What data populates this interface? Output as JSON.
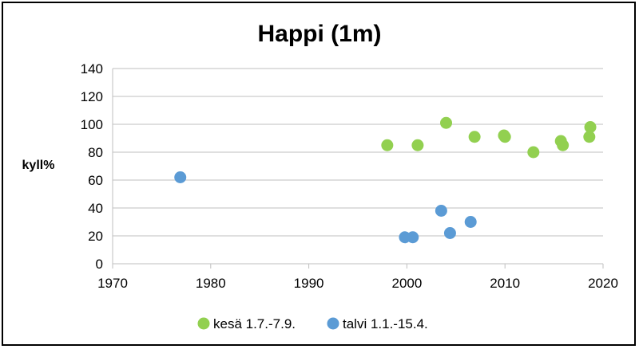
{
  "chart_data": {
    "type": "scatter",
    "title": "Happi (1m)",
    "xlabel": "",
    "ylabel": "kyll%",
    "xlim": [
      1970,
      2020
    ],
    "ylim": [
      0,
      140
    ],
    "x_ticks": [
      1970,
      1980,
      1990,
      2000,
      2010,
      2020
    ],
    "y_ticks": [
      0,
      20,
      40,
      60,
      80,
      100,
      120,
      140
    ],
    "grid": "horizontal",
    "legend_position": "bottom",
    "series": [
      {
        "name": "kesä 1.7.-7.9.",
        "color": "#92d050",
        "points": [
          {
            "x": 1998.0,
            "y": 85
          },
          {
            "x": 2001.1,
            "y": 85
          },
          {
            "x": 2004.0,
            "y": 101
          },
          {
            "x": 2006.9,
            "y": 91
          },
          {
            "x": 2009.9,
            "y": 92
          },
          {
            "x": 2010.0,
            "y": 91
          },
          {
            "x": 2012.9,
            "y": 80
          },
          {
            "x": 2015.7,
            "y": 88
          },
          {
            "x": 2015.9,
            "y": 85
          },
          {
            "x": 2018.6,
            "y": 91
          },
          {
            "x": 2018.7,
            "y": 98
          }
        ]
      },
      {
        "name": "talvi 1.1.-15.4.",
        "color": "#5b9bd5",
        "points": [
          {
            "x": 1976.9,
            "y": 62
          },
          {
            "x": 1999.8,
            "y": 19
          },
          {
            "x": 2000.6,
            "y": 19
          },
          {
            "x": 2003.5,
            "y": 38
          },
          {
            "x": 2004.4,
            "y": 22
          },
          {
            "x": 2006.5,
            "y": 30
          }
        ]
      }
    ]
  }
}
